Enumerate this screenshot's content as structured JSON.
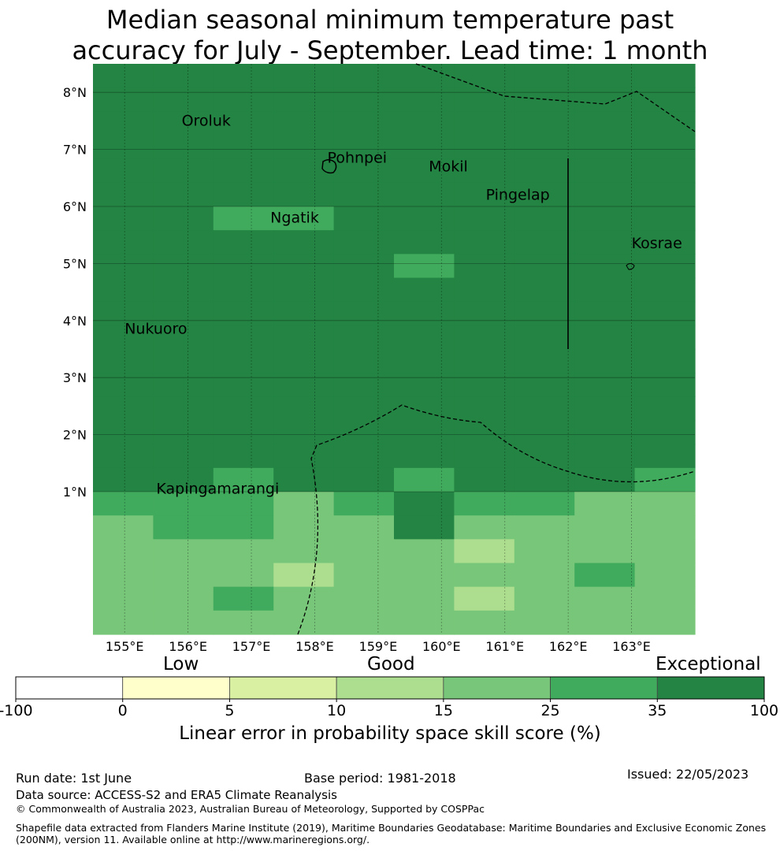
{
  "title_line1": "Median seasonal minimum temperature past",
  "title_line2": "accuracy for July - September. Lead time: 1 month",
  "map": {
    "lon_range": [
      154.5,
      164.0
    ],
    "lat_range": [
      -1.5,
      8.5
    ],
    "lon_ticks": [
      "155°E",
      "156°E",
      "157°E",
      "158°E",
      "159°E",
      "160°E",
      "161°E",
      "162°E",
      "163°E"
    ],
    "lon_tick_values": [
      155,
      156,
      157,
      158,
      159,
      160,
      161,
      162,
      163
    ],
    "lat_ticks": [
      "1°N",
      "2°N",
      "3°N",
      "4°N",
      "5°N",
      "6°N",
      "7°N",
      "8°N"
    ],
    "lat_tick_values": [
      1,
      2,
      3,
      4,
      5,
      6,
      7,
      8
    ],
    "grid": true,
    "places": [
      {
        "name": "Oroluk",
        "lon": 155.9,
        "lat": 7.5
      },
      {
        "name": "Pohnpei",
        "lon": 158.2,
        "lat": 6.85
      },
      {
        "name": "Mokil",
        "lon": 159.8,
        "lat": 6.7
      },
      {
        "name": "Pingelap",
        "lon": 160.7,
        "lat": 6.2
      },
      {
        "name": "Ngatik",
        "lon": 157.3,
        "lat": 5.8
      },
      {
        "name": "Kosrae",
        "lon": 163.0,
        "lat": 5.35
      },
      {
        "name": "Nukuoro",
        "lon": 155.0,
        "lat": 3.85
      },
      {
        "name": "Kapingamarangi",
        "lon": 155.5,
        "lat": 1.05
      }
    ],
    "skill_grid_note": "rows top to bottom; category index 0..6 matches colorbar bins",
    "skill_grid": [
      "6666666666",
      "6666666666",
      "6666666666",
      "6666666666",
      "6666666666",
      "6666666666",
      "6655666666",
      "6666666666",
      "6666656666",
      "6666666666",
      "6666666666",
      "6666666666",
      "6666666666",
      "6666666666",
      "6666666666",
      "6666666666",
      "6666666666",
      "6656656665",
      "5554565544",
      "4554464444",
      "4444443444",
      "4443444454",
      "4454443444",
      "4444444444"
    ]
  },
  "colorbar": {
    "categories": [
      "Low",
      "Good",
      "Exceptional"
    ],
    "tick_labels": [
      "-100",
      "0",
      "5",
      "10",
      "15",
      "25",
      "35",
      "100"
    ],
    "colors": [
      "#ffffff",
      "#ffffcc",
      "#d9f0a3",
      "#addd8e",
      "#78c679",
      "#41ab5d",
      "#238443"
    ],
    "label": "Linear error in probability space skill score (%)"
  },
  "footer": {
    "run_date": "Run date: 1st June",
    "base_period": "Base period: 1981-2018",
    "issued": "Issued: 22/05/2023",
    "data_source": "Data source: ACCESS-S2 and ERA5 Climate Reanalysis",
    "copyright": "© Commonwealth of Australia 2023, Australian Bureau of Meteorology, Supported by COSPPac",
    "shapefile_line1": "Shapefile data extracted from Flanders Marine Institute (2019), Maritime Boundaries Geodatabase: Maritime Boundaries and Exclusive Economic Zones",
    "shapefile_line2": "(200NM), version 11. Available online at http://www.marineregions.org/."
  }
}
